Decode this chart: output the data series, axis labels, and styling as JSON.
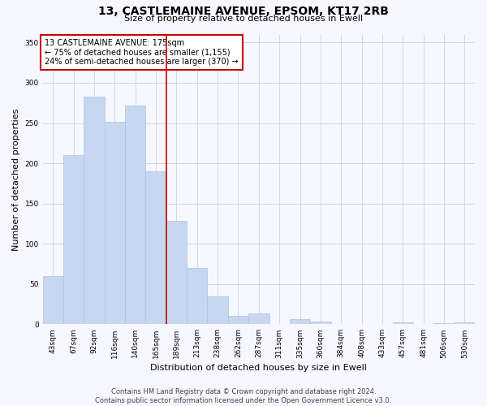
{
  "title": "13, CASTLEMAINE AVENUE, EPSOM, KT17 2RB",
  "subtitle": "Size of property relative to detached houses in Ewell",
  "xlabel": "Distribution of detached houses by size in Ewell",
  "ylabel": "Number of detached properties",
  "categories": [
    "43sqm",
    "67sqm",
    "92sqm",
    "116sqm",
    "140sqm",
    "165sqm",
    "189sqm",
    "213sqm",
    "238sqm",
    "262sqm",
    "287sqm",
    "311sqm",
    "335sqm",
    "360sqm",
    "384sqm",
    "408sqm",
    "433sqm",
    "457sqm",
    "481sqm",
    "506sqm",
    "530sqm"
  ],
  "values": [
    60,
    210,
    283,
    252,
    272,
    190,
    128,
    70,
    35,
    10,
    13,
    0,
    6,
    3,
    0,
    0,
    0,
    2,
    0,
    1,
    2
  ],
  "bar_color": "#c5d8f0",
  "bar_edge_color": "#a8c4e0",
  "vline_color": "#cc0000",
  "annotation_box": {
    "text_line1": "13 CASTLEMAINE AVENUE: 175sqm",
    "text_line2": "← 75% of detached houses are smaller (1,155)",
    "text_line3": "24% of semi-detached houses are larger (370) →",
    "box_color": "white",
    "border_color": "#cc0000"
  },
  "ylim": [
    0,
    360
  ],
  "yticks": [
    0,
    50,
    100,
    150,
    200,
    250,
    300,
    350
  ],
  "footer_line1": "Contains HM Land Registry data © Crown copyright and database right 2024.",
  "footer_line2": "Contains public sector information licensed under the Open Government Licence v3.0.",
  "bg_color": "#f7f7ff",
  "grid_color": "#d0d8e8",
  "title_fontsize": 10,
  "subtitle_fontsize": 8,
  "ylabel_fontsize": 8,
  "xlabel_fontsize": 8,
  "tick_fontsize": 6.5,
  "annotation_fontsize": 7,
  "footer_fontsize": 6
}
